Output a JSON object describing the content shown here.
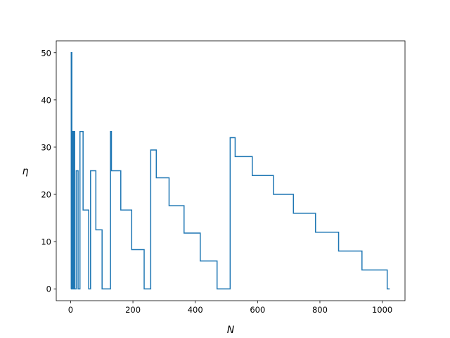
{
  "chart_data": {
    "type": "line",
    "title": "",
    "xlabel": "N",
    "ylabel": "η",
    "xlim": [
      -46.1,
      1073.1
    ],
    "ylim": [
      -2.5,
      52.5
    ],
    "xticks": [
      0,
      200,
      400,
      600,
      800,
      1000
    ],
    "yticks": [
      0,
      10,
      20,
      30,
      40,
      50
    ],
    "grid": false,
    "legend": "none",
    "series": [
      {
        "color": "#1f77b4",
        "step": "post",
        "x": [
          1,
          2,
          3,
          4,
          5,
          6,
          7,
          8,
          9,
          10,
          11,
          12,
          13,
          14,
          15,
          16,
          18,
          20,
          22,
          24,
          27,
          30,
          33,
          36,
          40,
          44,
          58,
          62,
          64,
          66,
          81,
          96,
          101,
          107,
          110,
          114,
          128,
          131,
          161,
          196,
          226,
          236,
          257,
          275,
          316,
          364,
          416,
          470,
          512,
          528,
          583,
          651,
          715,
          786,
          860,
          935,
          1016,
          1024
        ],
        "y": [
          0,
          50,
          50,
          0,
          33.3,
          0,
          0,
          0,
          33.3,
          0,
          33.3,
          33.3,
          0,
          0,
          0,
          0,
          25,
          25,
          25,
          0,
          0,
          33.3,
          33.3,
          33.3,
          16.7,
          16.7,
          0,
          0,
          25,
          25,
          12.5,
          12.5,
          0,
          0,
          0,
          0,
          33.3,
          25,
          16.7,
          8.3,
          8.3,
          0,
          29.4,
          23.5,
          17.6,
          11.8,
          5.9,
          0,
          32,
          28,
          24,
          20,
          16,
          12,
          8,
          4,
          0,
          0
        ]
      }
    ]
  }
}
